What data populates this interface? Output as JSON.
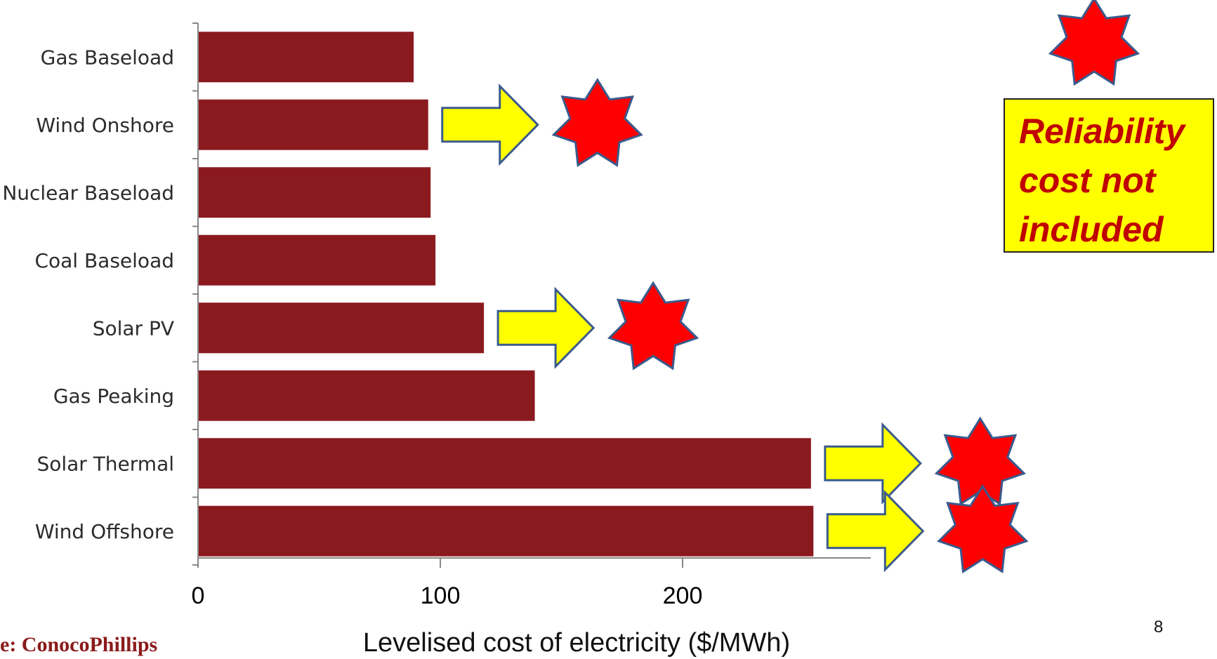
{
  "chart_data": {
    "type": "bar",
    "orientation": "horizontal",
    "categories": [
      "Gas Baseload",
      "Wind Onshore",
      "Nuclear Baseload",
      "Coal Baseload",
      "Solar PV",
      "Gas Peaking",
      "Solar Thermal",
      "Wind Offshore"
    ],
    "values": [
      89,
      95,
      96,
      98,
      118,
      139,
      253,
      254
    ],
    "xlabel": "Levelised cost of electricity ($/MWh)",
    "ylabel": "",
    "xlim": [
      0,
      280
    ],
    "xticks": [
      "0",
      "100",
      "200"
    ],
    "bar_color": "#8b1a1f",
    "grid": false,
    "flagged_categories": [
      "Wind Onshore",
      "Solar PV",
      "Solar Thermal",
      "Wind Offshore"
    ]
  },
  "annotation": {
    "text": "Reliability\ncost not\nincluded",
    "box_color": "#ffff00",
    "text_color": "#c00000",
    "star_color": "#ff0000",
    "arrow_color": "#ffff00"
  },
  "footer": {
    "source": "e: ConocoPhillips",
    "page_number": "8"
  }
}
